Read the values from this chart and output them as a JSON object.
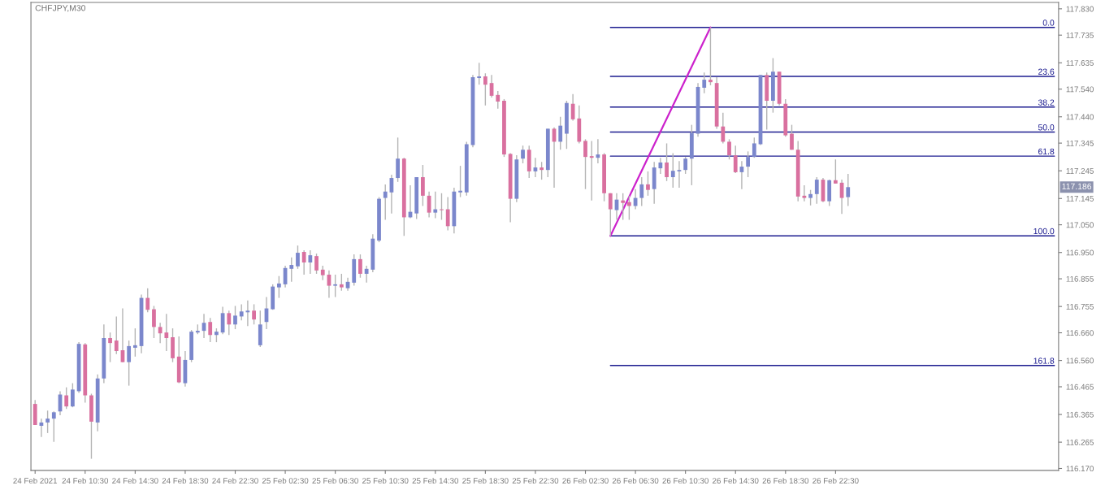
{
  "chart_data": {
    "type": "candlestick",
    "title": "CHFJPY,M30",
    "x": [
      "2021-02-24T06:30",
      "2021-02-24T07:00",
      "2021-02-24T07:30",
      "2021-02-24T08:00",
      "2021-02-24T08:30",
      "2021-02-24T09:00",
      "2021-02-24T09:30",
      "2021-02-24T10:00",
      "2021-02-24T10:30",
      "2021-02-24T11:00",
      "2021-02-24T11:30",
      "2021-02-24T12:00",
      "2021-02-24T12:30",
      "2021-02-24T13:00",
      "2021-02-24T13:30",
      "2021-02-24T14:00",
      "2021-02-24T14:30",
      "2021-02-24T15:00",
      "2021-02-24T15:30",
      "2021-02-24T16:00",
      "2021-02-24T16:30",
      "2021-02-24T17:00",
      "2021-02-24T17:30",
      "2021-02-24T18:00",
      "2021-02-24T18:30",
      "2021-02-24T19:00",
      "2021-02-24T19:30",
      "2021-02-24T20:00",
      "2021-02-24T20:30",
      "2021-02-24T21:00",
      "2021-02-24T21:30",
      "2021-02-24T22:00",
      "2021-02-24T22:30",
      "2021-02-24T23:00",
      "2021-02-24T23:30",
      "2021-02-25T00:00",
      "2021-02-25T00:30",
      "2021-02-25T01:00",
      "2021-02-25T01:30",
      "2021-02-25T02:00",
      "2021-02-25T02:30",
      "2021-02-25T03:00",
      "2021-02-25T03:30",
      "2021-02-25T04:00",
      "2021-02-25T04:30",
      "2021-02-25T05:00",
      "2021-02-25T05:30",
      "2021-02-25T06:00",
      "2021-02-25T06:30",
      "2021-02-25T07:00",
      "2021-02-25T07:30",
      "2021-02-25T08:00",
      "2021-02-25T08:30",
      "2021-02-25T09:00",
      "2021-02-25T09:30",
      "2021-02-25T10:00",
      "2021-02-25T10:30",
      "2021-02-25T11:00",
      "2021-02-25T11:30",
      "2021-02-25T12:00",
      "2021-02-25T12:30",
      "2021-02-25T13:00",
      "2021-02-25T13:30",
      "2021-02-25T14:00",
      "2021-02-25T14:30",
      "2021-02-25T15:00",
      "2021-02-25T15:30",
      "2021-02-25T16:00",
      "2021-02-25T16:30",
      "2021-02-25T17:00",
      "2021-02-25T17:30",
      "2021-02-25T18:00",
      "2021-02-25T18:30",
      "2021-02-25T19:00",
      "2021-02-25T19:30",
      "2021-02-25T20:00",
      "2021-02-25T20:30",
      "2021-02-25T21:00",
      "2021-02-25T21:30",
      "2021-02-25T22:00",
      "2021-02-25T22:30",
      "2021-02-25T23:00",
      "2021-02-25T23:30",
      "2021-02-26T00:00",
      "2021-02-26T00:30",
      "2021-02-26T01:00",
      "2021-02-26T01:30",
      "2021-02-26T02:00",
      "2021-02-26T02:30",
      "2021-02-26T03:00",
      "2021-02-26T03:30",
      "2021-02-26T04:00",
      "2021-02-26T04:30",
      "2021-02-26T05:00",
      "2021-02-26T05:30",
      "2021-02-26T06:00",
      "2021-02-26T06:30",
      "2021-02-26T07:00",
      "2021-02-26T07:30",
      "2021-02-26T08:00",
      "2021-02-26T08:30",
      "2021-02-26T09:00",
      "2021-02-26T09:30",
      "2021-02-26T10:00",
      "2021-02-26T10:30",
      "2021-02-26T11:00",
      "2021-02-26T11:30",
      "2021-02-26T12:00",
      "2021-02-26T12:30",
      "2021-02-26T13:00",
      "2021-02-26T13:30",
      "2021-02-26T14:00",
      "2021-02-26T14:30",
      "2021-02-26T15:00",
      "2021-02-26T15:30",
      "2021-02-26T16:00",
      "2021-02-26T16:30",
      "2021-02-26T17:00",
      "2021-02-26T17:30",
      "2021-02-26T18:00",
      "2021-02-26T18:30",
      "2021-02-26T19:00",
      "2021-02-26T19:30",
      "2021-02-26T20:00",
      "2021-02-26T20:30",
      "2021-02-26T21:00",
      "2021-02-26T21:30",
      "2021-02-26T22:00",
      "2021-02-26T22:30",
      "2021-02-26T23:00",
      "2021-02-26T23:30"
    ],
    "ohlc": [
      [
        116.403,
        116.417,
        116.327,
        116.327
      ],
      [
        116.324,
        116.35,
        116.284,
        116.336
      ],
      [
        116.336,
        116.379,
        116.298,
        116.35
      ],
      [
        116.35,
        116.376,
        116.266,
        116.373
      ],
      [
        116.376,
        116.449,
        116.362,
        116.437
      ],
      [
        116.434,
        116.463,
        116.385,
        116.394
      ],
      [
        116.394,
        116.478,
        116.391,
        116.455
      ],
      [
        116.449,
        116.626,
        116.443,
        116.62
      ],
      [
        116.618,
        116.623,
        116.408,
        116.434
      ],
      [
        116.434,
        116.44,
        116.205,
        116.339
      ],
      [
        116.336,
        116.51,
        116.304,
        116.495
      ],
      [
        116.495,
        116.69,
        116.478,
        116.641
      ],
      [
        116.641,
        116.661,
        116.554,
        116.623
      ],
      [
        116.632,
        116.719,
        116.583,
        116.594
      ],
      [
        116.597,
        116.748,
        116.554,
        116.554
      ],
      [
        116.554,
        116.632,
        116.469,
        116.612
      ],
      [
        116.606,
        116.676,
        116.574,
        116.615
      ],
      [
        116.612,
        116.798,
        116.586,
        116.786
      ],
      [
        116.786,
        116.821,
        116.734,
        116.743
      ],
      [
        116.745,
        116.757,
        116.641,
        116.681
      ],
      [
        116.681,
        116.696,
        116.623,
        116.658
      ],
      [
        116.661,
        116.728,
        116.594,
        116.641
      ],
      [
        116.644,
        116.676,
        116.554,
        116.568
      ],
      [
        116.574,
        116.647,
        116.478,
        116.481
      ],
      [
        116.478,
        116.594,
        116.466,
        116.562
      ],
      [
        116.562,
        116.67,
        116.554,
        116.664
      ],
      [
        116.661,
        116.69,
        116.655,
        116.667
      ],
      [
        116.667,
        116.728,
        116.641,
        116.696
      ],
      [
        116.699,
        116.714,
        116.626,
        116.652
      ],
      [
        116.652,
        116.676,
        116.626,
        116.664
      ],
      [
        116.661,
        116.754,
        116.655,
        116.731
      ],
      [
        116.731,
        116.74,
        116.652,
        116.69
      ],
      [
        116.69,
        116.757,
        116.673,
        116.722
      ],
      [
        116.719,
        116.763,
        116.705,
        116.737
      ],
      [
        116.734,
        116.777,
        116.684,
        116.74
      ],
      [
        116.74,
        116.763,
        116.69,
        116.708
      ],
      [
        116.615,
        116.74,
        116.609,
        116.69
      ],
      [
        116.699,
        116.789,
        116.673,
        116.748
      ],
      [
        116.745,
        116.835,
        116.743,
        116.827
      ],
      [
        116.824,
        116.865,
        116.786,
        116.838
      ],
      [
        116.835,
        116.902,
        116.824,
        116.894
      ],
      [
        116.891,
        116.932,
        116.844,
        116.905
      ],
      [
        116.9,
        116.975,
        116.891,
        116.949
      ],
      [
        116.952,
        116.958,
        116.87,
        116.914
      ],
      [
        116.914,
        116.958,
        116.873,
        116.94
      ],
      [
        116.937,
        116.946,
        116.873,
        116.885
      ],
      [
        116.888,
        116.902,
        116.85,
        116.868
      ],
      [
        116.87,
        116.885,
        116.786,
        116.83
      ],
      [
        116.83,
        116.87,
        116.789,
        116.835
      ],
      [
        116.835,
        116.873,
        116.812,
        116.824
      ],
      [
        116.821,
        116.859,
        116.812,
        116.844
      ],
      [
        116.841,
        116.943,
        116.83,
        116.926
      ],
      [
        116.926,
        116.943,
        116.859,
        116.873
      ],
      [
        116.873,
        116.902,
        116.841,
        116.891
      ],
      [
        116.888,
        117.016,
        116.879,
        117.0
      ],
      [
        116.993,
        117.15,
        116.987,
        117.144
      ],
      [
        117.147,
        117.196,
        117.068,
        117.17
      ],
      [
        117.167,
        117.231,
        117.091,
        117.219
      ],
      [
        117.219,
        117.365,
        117.205,
        117.289
      ],
      [
        117.289,
        117.292,
        117.01,
        117.077
      ],
      [
        117.077,
        117.193,
        117.074,
        117.097
      ],
      [
        117.091,
        117.222,
        117.071,
        117.222
      ],
      [
        117.222,
        117.266,
        117.118,
        117.155
      ],
      [
        117.155,
        117.17,
        117.077,
        117.094
      ],
      [
        117.094,
        117.17,
        117.074,
        117.106
      ],
      [
        117.106,
        117.164,
        117.068,
        117.103
      ],
      [
        117.106,
        117.15,
        117.03,
        117.045
      ],
      [
        117.045,
        117.184,
        117.019,
        117.17
      ],
      [
        117.167,
        117.263,
        117.15,
        117.173
      ],
      [
        117.167,
        117.35,
        117.155,
        117.341
      ],
      [
        117.338,
        117.591,
        117.33,
        117.583
      ],
      [
        117.58,
        117.635,
        117.556,
        117.586
      ],
      [
        117.586,
        117.597,
        117.481,
        117.556
      ],
      [
        117.562,
        117.591,
        117.51,
        117.516
      ],
      [
        117.519,
        117.533,
        117.469,
        117.495
      ],
      [
        117.498,
        117.504,
        117.295,
        117.304
      ],
      [
        117.306,
        117.309,
        117.059,
        117.144
      ],
      [
        117.144,
        117.301,
        117.132,
        117.286
      ],
      [
        117.289,
        117.336,
        117.272,
        117.321
      ],
      [
        117.321,
        117.336,
        117.219,
        117.243
      ],
      [
        117.243,
        117.292,
        117.222,
        117.257
      ],
      [
        117.257,
        117.277,
        117.213,
        117.248
      ],
      [
        117.248,
        117.397,
        117.222,
        117.397
      ],
      [
        117.397,
        117.402,
        117.184,
        117.35
      ],
      [
        117.35,
        117.44,
        117.321,
        117.408
      ],
      [
        117.379,
        117.498,
        117.324,
        117.49
      ],
      [
        117.487,
        117.522,
        117.426,
        117.431
      ],
      [
        117.434,
        117.481,
        117.344,
        117.35
      ],
      [
        117.353,
        117.359,
        117.179,
        117.295
      ],
      [
        117.298,
        117.353,
        117.138,
        117.292
      ],
      [
        117.292,
        117.359,
        117.272,
        117.304
      ],
      [
        117.304,
        117.309,
        117.135,
        117.164
      ],
      [
        117.164,
        117.164,
        117.01,
        117.106
      ],
      [
        117.103,
        117.164,
        117.068,
        117.141
      ],
      [
        117.138,
        117.164,
        117.068,
        117.129
      ],
      [
        117.132,
        117.155,
        117.068,
        117.118
      ],
      [
        117.118,
        117.179,
        117.106,
        117.147
      ],
      [
        117.147,
        117.222,
        117.118,
        117.196
      ],
      [
        117.196,
        117.243,
        117.155,
        117.176
      ],
      [
        117.179,
        117.277,
        117.126,
        117.257
      ],
      [
        117.254,
        117.292,
        117.234,
        117.275
      ],
      [
        117.275,
        117.344,
        117.208,
        117.222
      ],
      [
        117.222,
        117.309,
        117.184,
        117.245
      ],
      [
        117.243,
        117.28,
        117.184,
        117.248
      ],
      [
        117.248,
        117.295,
        117.234,
        117.289
      ],
      [
        117.289,
        117.411,
        117.193,
        117.382
      ],
      [
        117.379,
        117.562,
        117.368,
        117.548
      ],
      [
        117.545,
        117.6,
        117.525,
        117.574
      ],
      [
        117.574,
        117.763,
        117.554,
        117.565
      ],
      [
        117.562,
        117.583,
        117.397,
        117.405
      ],
      [
        117.405,
        117.455,
        117.344,
        117.35
      ],
      [
        117.35,
        117.359,
        117.286,
        117.301
      ],
      [
        117.301,
        117.336,
        117.237,
        117.24
      ],
      [
        117.24,
        117.28,
        117.179,
        117.26
      ],
      [
        117.26,
        117.315,
        117.222,
        117.295
      ],
      [
        117.295,
        117.365,
        117.292,
        117.344
      ],
      [
        117.341,
        117.591,
        117.338,
        117.591
      ],
      [
        117.591,
        117.6,
        117.394,
        117.498
      ],
      [
        117.498,
        117.652,
        117.455,
        117.603
      ],
      [
        117.603,
        117.603,
        117.481,
        117.487
      ],
      [
        117.487,
        117.504,
        117.368,
        117.373
      ],
      [
        117.379,
        117.411,
        117.321,
        117.321
      ],
      [
        117.321,
        117.353,
        117.135,
        117.152
      ],
      [
        117.155,
        117.193,
        117.135,
        117.147
      ],
      [
        117.147,
        117.176,
        117.12,
        117.161
      ],
      [
        117.161,
        117.222,
        117.126,
        117.213
      ],
      [
        117.213,
        117.219,
        117.132,
        117.135
      ],
      [
        117.135,
        117.213,
        117.118,
        117.211
      ],
      [
        117.211,
        117.286,
        117.199,
        117.199
      ],
      [
        117.202,
        117.213,
        117.089,
        117.147
      ],
      [
        117.15,
        117.234,
        117.118,
        117.186
      ]
    ],
    "colors": [
      "#d9709f",
      "#7b87cc",
      "#7b87cc",
      "#7b87cc",
      "#7b87cc",
      "#d9709f",
      "#7b87cc",
      "#7b87cc",
      "#d9709f",
      "#d9709f",
      "#7b87cc",
      "#7b87cc",
      "#d9709f",
      "#d9709f",
      "#d9709f",
      "#7b87cc",
      "#7b87cc",
      "#7b87cc",
      "#d9709f",
      "#d9709f",
      "#d9709f",
      "#d9709f",
      "#d9709f",
      "#d9709f",
      "#7b87cc",
      "#7b87cc",
      "#7b87cc",
      "#7b87cc",
      "#d9709f",
      "#7b87cc",
      "#7b87cc",
      "#d9709f",
      "#7b87cc",
      "#7b87cc",
      "#7b87cc",
      "#d9709f",
      "#7b87cc",
      "#7b87cc",
      "#7b87cc",
      "#7b87cc",
      "#7b87cc",
      "#7b87cc",
      "#7b87cc",
      "#d9709f",
      "#7b87cc",
      "#d9709f",
      "#d9709f",
      "#d9709f",
      "#7b87cc",
      "#d9709f",
      "#7b87cc",
      "#7b87cc",
      "#d9709f",
      "#7b87cc",
      "#7b87cc",
      "#7b87cc",
      "#7b87cc",
      "#7b87cc",
      "#7b87cc",
      "#d9709f",
      "#7b87cc",
      "#7b87cc",
      "#d9709f",
      "#d9709f",
      "#7b87cc",
      "#d9709f",
      "#d9709f",
      "#7b87cc",
      "#7b87cc",
      "#7b87cc",
      "#7b87cc",
      "#7b87cc",
      "#d9709f",
      "#d9709f",
      "#d9709f",
      "#d9709f",
      "#d9709f",
      "#7b87cc",
      "#7b87cc",
      "#d9709f",
      "#7b87cc",
      "#d9709f",
      "#7b87cc",
      "#d9709f",
      "#7b87cc",
      "#7b87cc",
      "#d9709f",
      "#d9709f",
      "#d9709f",
      "#d9709f",
      "#7b87cc",
      "#d9709f",
      "#d9709f",
      "#7b87cc",
      "#d9709f",
      "#d9709f",
      "#7b87cc",
      "#7b87cc",
      "#d9709f",
      "#7b87cc",
      "#7b87cc",
      "#d9709f",
      "#7b87cc",
      "#7b87cc",
      "#7b87cc",
      "#7b87cc",
      "#7b87cc",
      "#7b87cc",
      "#d9709f",
      "#d9709f",
      "#d9709f",
      "#d9709f",
      "#d9709f",
      "#7b87cc",
      "#7b87cc",
      "#7b87cc",
      "#7b87cc",
      "#d9709f",
      "#7b87cc",
      "#d9709f",
      "#d9709f",
      "#d9709f",
      "#d9709f",
      "#d9709f",
      "#7b87cc",
      "#7b87cc",
      "#d9709f",
      "#7b87cc",
      "#d9709f",
      "#d9709f",
      "#7b87cc"
    ],
    "series": [
      {
        "type": "line",
        "name": "0.0",
        "color": "#1c1c90",
        "x": [
          "2021-02-26T04:30",
          "2021-02-27T16:00"
        ],
        "values": [
          117.763,
          117.763
        ]
      },
      {
        "type": "line",
        "name": "23.6",
        "color": "#1c1c90",
        "x": [
          "2021-02-26T04:30",
          "2021-02-27T16:00"
        ],
        "values": [
          117.586,
          117.586
        ]
      },
      {
        "type": "line",
        "name": "38.2",
        "color": "#1c1c90",
        "x": [
          "2021-02-26T04:30",
          "2021-02-27T16:00"
        ],
        "values": [
          117.475,
          117.475
        ]
      },
      {
        "type": "line",
        "name": "50.0",
        "color": "#1c1c90",
        "x": [
          "2021-02-26T04:30",
          "2021-02-27T16:00"
        ],
        "values": [
          117.385,
          117.385
        ]
      },
      {
        "type": "line",
        "name": "61.8",
        "color": "#1c1c90",
        "x": [
          "2021-02-26T04:30",
          "2021-02-27T16:00"
        ],
        "values": [
          117.298,
          117.298
        ]
      },
      {
        "type": "line",
        "name": "100.0",
        "color": "#1c1c90",
        "x": [
          "2021-02-26T04:30",
          "2021-02-27T16:00"
        ],
        "values": [
          117.01,
          117.01
        ]
      },
      {
        "type": "line",
        "name": "161.8",
        "color": "#1c1c90",
        "x": [
          "2021-02-26T04:30",
          "2021-02-27T16:00"
        ],
        "values": [
          116.542,
          116.542
        ]
      },
      {
        "type": "line",
        "color": "#cc22cc",
        "x": [
          "2021-02-26T04:30",
          "2021-02-26T12:30"
        ],
        "values": [
          117.01,
          117.763
        ]
      }
    ],
    "annotations": [
      "117.186"
    ],
    "xlim": [
      "2021-02-24T06:10",
      "2021-02-27T16:20"
    ],
    "xticks": [
      {
        "value": "2021-02-24T06:30",
        "label": "24 Feb 2021"
      },
      {
        "value": "2021-02-24T10:30",
        "label": "24 Feb 10:30"
      },
      {
        "value": "2021-02-24T14:30",
        "label": "24 Feb 14:30"
      },
      {
        "value": "2021-02-24T18:30",
        "label": "24 Feb 18:30"
      },
      {
        "value": "2021-02-24T22:30",
        "label": "24 Feb 22:30"
      },
      {
        "value": "2021-02-25T02:30",
        "label": "25 Feb 02:30"
      },
      {
        "value": "2021-02-25T06:30",
        "label": "25 Feb 06:30"
      },
      {
        "value": "2021-02-25T10:30",
        "label": "25 Feb 10:30"
      },
      {
        "value": "2021-02-25T14:30",
        "label": "25 Feb 14:30"
      },
      {
        "value": "2021-02-25T18:30",
        "label": "25 Feb 18:30"
      },
      {
        "value": "2021-02-25T22:30",
        "label": "25 Feb 22:30"
      },
      {
        "value": "2021-02-26T02:30",
        "label": "26 Feb 02:30"
      },
      {
        "value": "2021-02-26T06:30",
        "label": "26 Feb 06:30"
      },
      {
        "value": "2021-02-26T10:30",
        "label": "26 Feb 10:30"
      },
      {
        "value": "2021-02-26T14:30",
        "label": "26 Feb 14:30"
      },
      {
        "value": "2021-02-26T18:30",
        "label": "26 Feb 18:30"
      },
      {
        "value": "2021-02-26T22:30",
        "label": "26 Feb 22:30"
      }
    ],
    "ylim": [
      116.163,
      117.853
    ],
    "yticks": [
      {
        "value": 117.83,
        "label": "117.830"
      },
      {
        "value": 117.735,
        "label": "117.735"
      },
      {
        "value": 117.635,
        "label": "117.635"
      },
      {
        "value": 117.54,
        "label": "117.540"
      },
      {
        "value": 117.44,
        "label": "117.440"
      },
      {
        "value": 117.345,
        "label": "117.345"
      },
      {
        "value": 117.245,
        "label": "117.245"
      },
      {
        "value": 117.145,
        "label": "117.145"
      },
      {
        "value": 117.05,
        "label": "117.050"
      },
      {
        "value": 116.95,
        "label": "116.950"
      },
      {
        "value": 116.855,
        "label": "116.855"
      },
      {
        "value": 116.755,
        "label": "116.755"
      },
      {
        "value": 116.66,
        "label": "116.660"
      },
      {
        "value": 116.56,
        "label": "116.560"
      },
      {
        "value": 116.465,
        "label": "116.465"
      },
      {
        "value": 116.365,
        "label": "116.365"
      },
      {
        "value": 116.265,
        "label": "116.265"
      },
      {
        "value": 116.17,
        "label": "116.170"
      }
    ]
  }
}
